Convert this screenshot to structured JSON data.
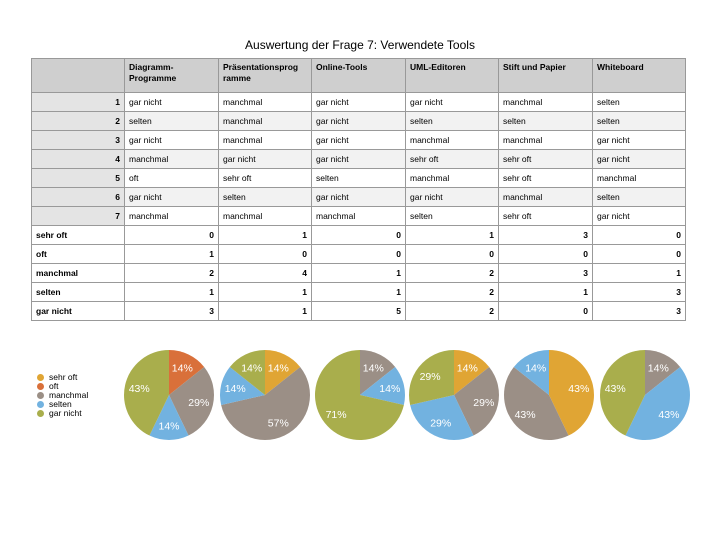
{
  "title": "Auswertung der Frage 7: Verwendete Tools",
  "columns": [
    "Diagramm-Programme",
    "Präsentationsprogramme",
    "Online-Tools",
    "UML-Editoren",
    "Stift und Papier",
    "Whiteboard"
  ],
  "column_headers_display": [
    "Diagramm-\nProgramme",
    "Präsentationsprog\nramme",
    "Online-Tools",
    "UML-Editoren",
    "Stift und Papier",
    "Whiteboard"
  ],
  "rows": [
    {
      "id": "1",
      "cells": [
        "gar nicht",
        "manchmal",
        "gar nicht",
        "gar nicht",
        "manchmal",
        "selten"
      ]
    },
    {
      "id": "2",
      "cells": [
        "selten",
        "manchmal",
        "gar nicht",
        "selten",
        "selten",
        "selten"
      ]
    },
    {
      "id": "3",
      "cells": [
        "gar nicht",
        "manchmal",
        "gar nicht",
        "manchmal",
        "manchmal",
        "gar nicht"
      ]
    },
    {
      "id": "4",
      "cells": [
        "manchmal",
        "gar nicht",
        "gar nicht",
        "sehr oft",
        "sehr oft",
        "gar nicht"
      ]
    },
    {
      "id": "5",
      "cells": [
        "oft",
        "sehr oft",
        "selten",
        "manchmal",
        "sehr oft",
        "manchmal"
      ]
    },
    {
      "id": "6",
      "cells": [
        "gar nicht",
        "selten",
        "gar nicht",
        "gar nicht",
        "manchmal",
        "selten"
      ]
    },
    {
      "id": "7",
      "cells": [
        "manchmal",
        "manchmal",
        "manchmal",
        "selten",
        "sehr oft",
        "gar nicht"
      ]
    }
  ],
  "summary": [
    {
      "label": "sehr oft",
      "values": [
        "0",
        "1",
        "0",
        "1",
        "3",
        "0"
      ]
    },
    {
      "label": "oft",
      "values": [
        "1",
        "0",
        "0",
        "0",
        "0",
        "0"
      ]
    },
    {
      "label": "manchmal",
      "values": [
        "2",
        "4",
        "1",
        "2",
        "3",
        "1"
      ]
    },
    {
      "label": "selten",
      "values": [
        "1",
        "1",
        "1",
        "2",
        "1",
        "3"
      ]
    },
    {
      "label": "gar nicht",
      "values": [
        "3",
        "1",
        "5",
        "2",
        "0",
        "3"
      ]
    }
  ],
  "legend": [
    {
      "label": "sehr oft",
      "color": "#e0a534"
    },
    {
      "label": "oft",
      "color": "#d9703a"
    },
    {
      "label": "manchmal",
      "color": "#9b8f86"
    },
    {
      "label": "selten",
      "color": "#72b2e0"
    },
    {
      "label": "gar nicht",
      "color": "#a9ae4c"
    }
  ],
  "chart_data": [
    {
      "type": "pie",
      "categories": [
        "sehr oft",
        "oft",
        "manchmal",
        "selten",
        "gar nicht"
      ],
      "values": [
        0,
        1,
        2,
        1,
        3
      ],
      "labels": [
        "",
        "14%",
        "29%",
        "14%",
        "43%"
      ]
    },
    {
      "type": "pie",
      "categories": [
        "sehr oft",
        "oft",
        "manchmal",
        "selten",
        "gar nicht"
      ],
      "values": [
        1,
        0,
        4,
        1,
        1
      ],
      "labels": [
        "14%",
        "",
        "57%",
        "14%",
        "14%"
      ]
    },
    {
      "type": "pie",
      "categories": [
        "sehr oft",
        "oft",
        "manchmal",
        "selten",
        "gar nicht"
      ],
      "values": [
        0,
        0,
        1,
        1,
        5
      ],
      "labels": [
        "",
        "",
        "14%",
        "14%",
        "71%"
      ]
    },
    {
      "type": "pie",
      "categories": [
        "sehr oft",
        "oft",
        "manchmal",
        "selten",
        "gar nicht"
      ],
      "values": [
        1,
        0,
        2,
        2,
        2
      ],
      "labels": [
        "14%",
        "",
        "29%",
        "29%",
        "29%"
      ]
    },
    {
      "type": "pie",
      "categories": [
        "sehr oft",
        "oft",
        "manchmal",
        "selten",
        "gar nicht"
      ],
      "values": [
        3,
        0,
        3,
        1,
        0
      ],
      "labels": [
        "43%",
        "",
        "43%",
        "14%",
        ""
      ]
    },
    {
      "type": "pie",
      "categories": [
        "sehr oft",
        "oft",
        "manchmal",
        "selten",
        "gar nicht"
      ],
      "values": [
        0,
        0,
        1,
        3,
        3
      ],
      "labels": [
        "",
        "",
        "14%",
        "43%",
        "43%"
      ]
    }
  ]
}
